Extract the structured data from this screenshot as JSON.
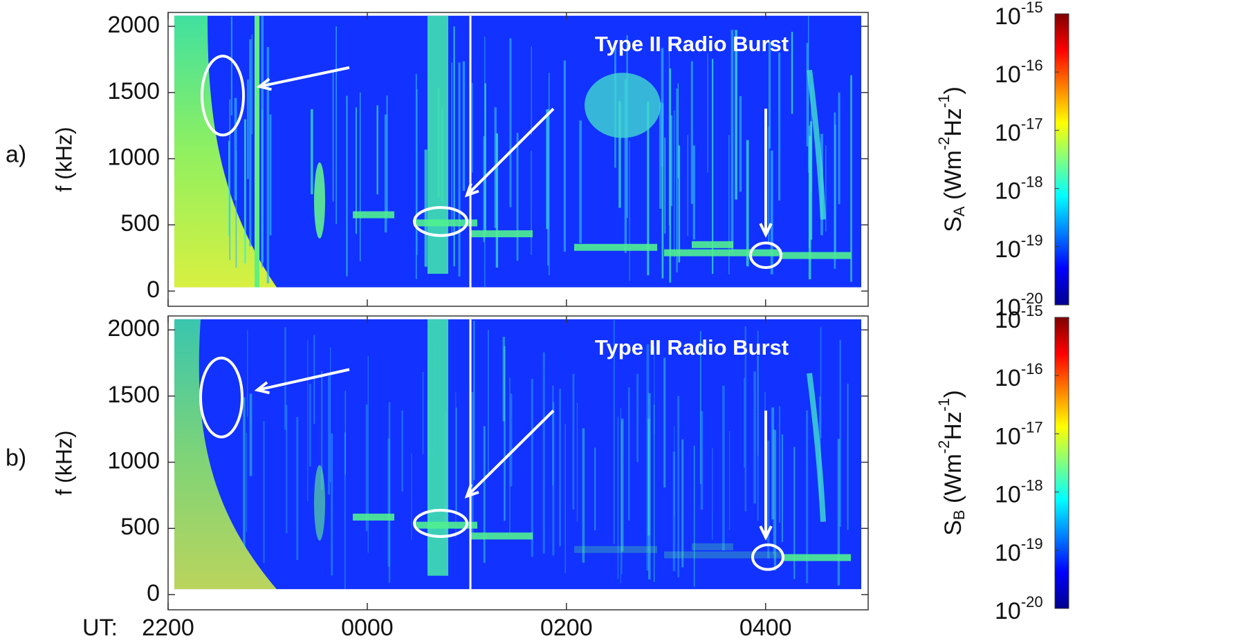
{
  "chart_data": [
    {
      "type": "heatmap",
      "panel_label": "a)",
      "annotation": "Type II Radio Burst",
      "ylabel": "f (kHz)",
      "xlim": [
        22,
        29.03
      ],
      "xticks": [
        22,
        24,
        26,
        28
      ],
      "ylim": [
        -115,
        2105
      ],
      "yticks": [
        0,
        500,
        1000,
        1500,
        2000
      ],
      "colorbar": {
        "label": [
          "S",
          "A",
          " (Wm",
          "-2",
          "Hz",
          "-1",
          ")"
        ],
        "log": true,
        "clim": [
          1e-20,
          1e-15
        ],
        "ticks": [
          {
            "value": 1e-20,
            "label": "10-20"
          },
          {
            "value": 1e-19,
            "label": "10-19"
          },
          {
            "value": 1e-18,
            "label": "10-18"
          },
          {
            "value": 1e-17,
            "label": "10-17"
          },
          {
            "value": 1e-16,
            "label": "10-16"
          },
          {
            "value": 1e-15,
            "label": "10-15"
          }
        ],
        "colors": [
          "#00008f",
          "#0000ff",
          "#0080ff",
          "#00ffff",
          "#80ff80",
          "#ffff00",
          "#ff8000",
          "#ff0000",
          "#800000"
        ]
      }
    },
    {
      "type": "heatmap",
      "panel_label": "b)",
      "annotation": "Type II Radio Burst",
      "ylabel": "f (kHz)",
      "xlabel": "UT:",
      "xlim": [
        22,
        29.03
      ],
      "xticks": [
        {
          "value": 22,
          "label": "2200"
        },
        {
          "value": 24,
          "label": "0000"
        },
        {
          "value": 26,
          "label": "0200"
        },
        {
          "value": 28,
          "label": "0400"
        }
      ],
      "ylim": [
        -115,
        2105
      ],
      "yticks": [
        0,
        500,
        1000,
        1500,
        2000
      ],
      "colorbar": {
        "label": [
          "S",
          "B",
          " (Wm",
          "-2",
          "Hz",
          "-1",
          ")"
        ],
        "log": true,
        "clim": [
          1e-20,
          1e-15
        ],
        "ticks": [
          {
            "value": 1e-20,
            "label": "10-20"
          },
          {
            "value": 1e-19,
            "label": "10-19"
          },
          {
            "value": 1e-18,
            "label": "10-18"
          },
          {
            "value": 1e-17,
            "label": "10-17"
          },
          {
            "value": 1e-16,
            "label": "10-16"
          },
          {
            "value": 1e-15,
            "label": "10-15"
          }
        ],
        "colors": [
          "#00008f",
          "#0000ff",
          "#0080ff",
          "#00ffff",
          "#80ff80",
          "#ffff00",
          "#ff8000",
          "#ff0000",
          "#800000"
        ]
      }
    }
  ]
}
